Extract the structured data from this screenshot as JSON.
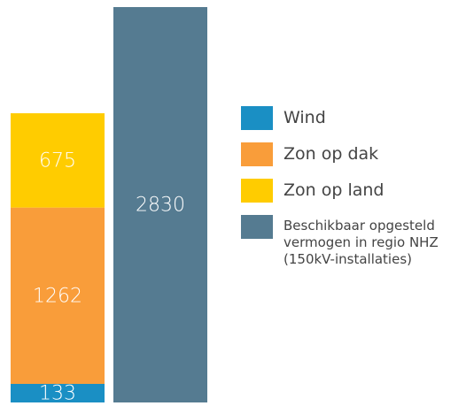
{
  "chart_data": {
    "type": "stacked-bar",
    "categories": [
      null,
      null
    ],
    "series": [
      {
        "name": "Wind",
        "color": "#1a8fc4",
        "values": [
          133,
          null
        ]
      },
      {
        "name": "Zon op dak",
        "color": "#f99d3a",
        "values": [
          1262,
          null
        ]
      },
      {
        "name": "Zon op land",
        "color": "#ffcc00",
        "values": [
          675,
          null
        ]
      },
      {
        "name": "Beschikbaar opgesteld vermogen in regio NHZ (150kV-installaties)",
        "color": "#557b91",
        "values": [
          null,
          2830
        ]
      }
    ]
  }
}
